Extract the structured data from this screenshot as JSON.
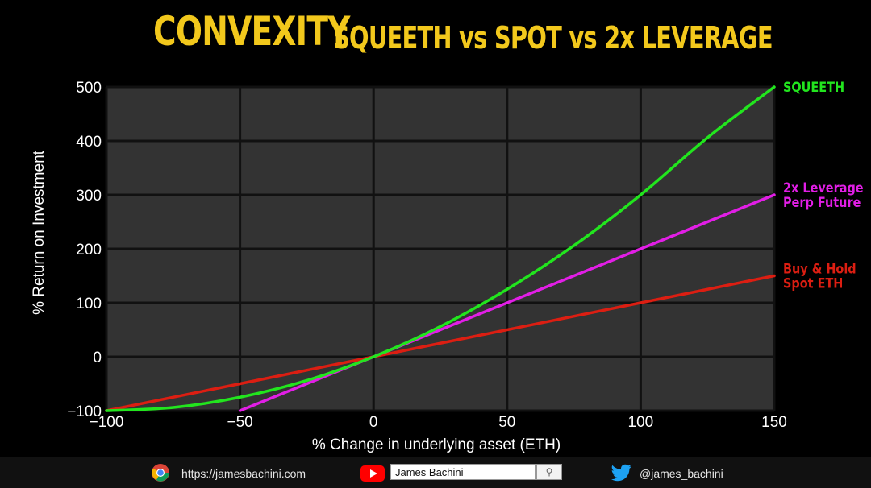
{
  "title": {
    "main": "CONVEXITY",
    "sub": "SQUEETH vs SPOT vs 2x LEVERAGE"
  },
  "chart_data": {
    "type": "line",
    "xlabel": "% Change in underlying asset (ETH)",
    "ylabel": "% Return on Investment",
    "xlim": [
      -100,
      150
    ],
    "ylim": [
      -100,
      500
    ],
    "x_ticks": [
      -100,
      -50,
      0,
      50,
      100,
      150
    ],
    "y_ticks": [
      -100,
      0,
      100,
      200,
      300,
      400,
      500
    ],
    "x_tick_labels": [
      "−100",
      "−50",
      "0",
      "50",
      "100",
      "150"
    ],
    "y_tick_labels": [
      "−100",
      "0",
      "100",
      "200",
      "300",
      "400",
      "500"
    ],
    "grid": true,
    "background": "#333333",
    "legend_placement": "right",
    "series": [
      {
        "name": "SQUEETH",
        "label_lines": [
          "SQUEETH"
        ],
        "color": "#22e51e",
        "x": [
          -100,
          -75,
          -50,
          -25,
          0,
          25,
          50,
          75,
          100,
          125,
          150
        ],
        "values": [
          -100,
          -94,
          -75,
          -44,
          0,
          56,
          125,
          206,
          300,
          406,
          500
        ]
      },
      {
        "name": "2x Leverage Perp Future",
        "label_lines": [
          "2x Leverage",
          "Perp Future"
        ],
        "color": "#e21ee6",
        "x": [
          -50,
          0,
          150
        ],
        "values": [
          -100,
          0,
          300
        ]
      },
      {
        "name": "Buy & Hold Spot ETH",
        "label_lines": [
          "Buy & Hold",
          "Spot ETH"
        ],
        "color": "#dc1e12",
        "x": [
          -100,
          0,
          150
        ],
        "values": [
          -100,
          0,
          150
        ]
      }
    ]
  },
  "footer": {
    "website": "https://jamesbachini.com",
    "youtube_channel": "James Bachini",
    "twitter_handle": "@james_bachini",
    "icons": [
      "chrome-icon",
      "youtube-icon",
      "twitter-icon",
      "search-icon"
    ]
  }
}
